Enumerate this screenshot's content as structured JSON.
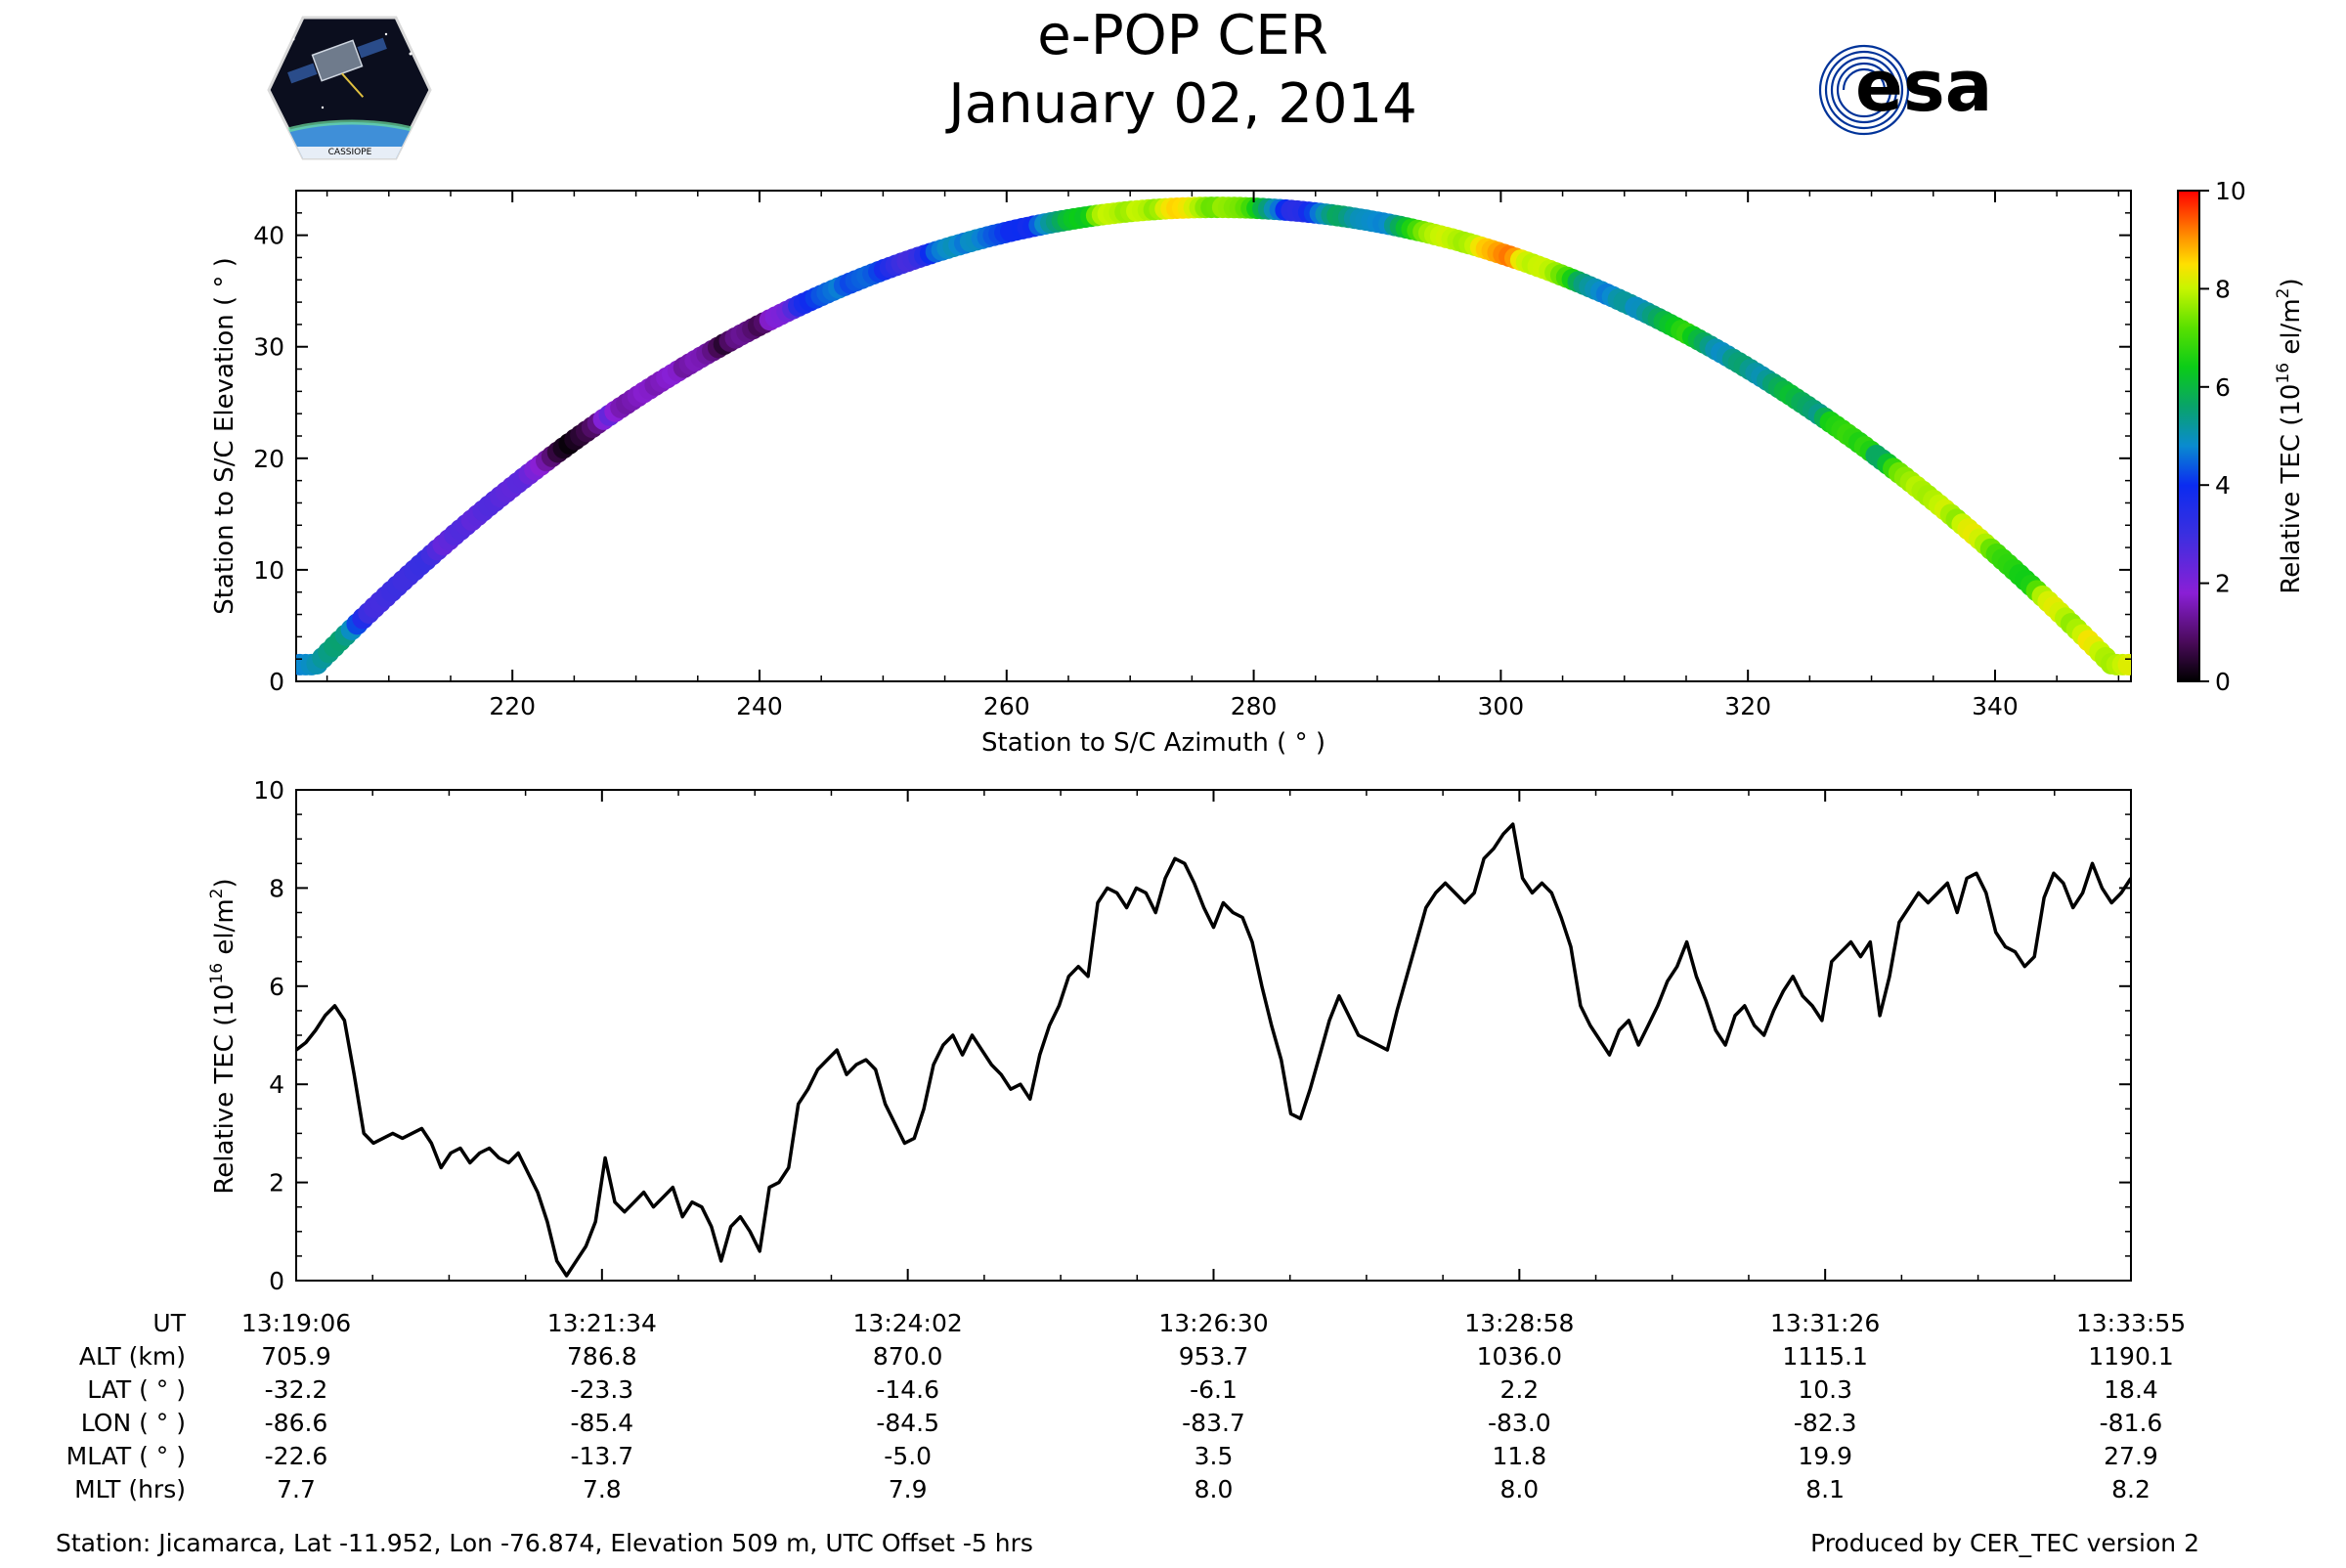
{
  "header": {
    "title": "e-POP CER",
    "date": "January 02, 2014",
    "logo_left_text": "CASSIOPE",
    "logo_right_text": "esa"
  },
  "colors": {
    "esa_blue": "#003399",
    "line": "#000000"
  },
  "chart_data": [
    {
      "type": "scatter",
      "xlabel": "Station to S/C Azimuth ( ° )",
      "ylabel": "Station to S/C Elevation ( ° )",
      "xlim": [
        202.5,
        351
      ],
      "ylim": [
        0,
        44
      ],
      "xticks": [
        220,
        240,
        260,
        280,
        300,
        320,
        340
      ],
      "yticks": [
        0,
        10,
        20,
        30,
        40
      ],
      "colormap": "nipy_spectral",
      "colorbar": {
        "label": "Relative TEC (10^16 el/m^2)",
        "ticks": [
          0,
          2,
          4,
          6,
          8,
          10
        ],
        "range": [
          0,
          10
        ]
      },
      "elevation_arc": {
        "peak_azimuth": 277,
        "peak_elevation": 42.5,
        "start_azimuth": 202.8,
        "end_azimuth": 350.8
      },
      "note_points": "Color per point = Relative TEC sampled along the pass (same series as chart 2)"
    },
    {
      "type": "line",
      "xlabel": "",
      "ylabel": "Relative TEC (10^16 el/m^2)",
      "ylim": [
        0,
        10
      ],
      "yticks": [
        0,
        2,
        4,
        6,
        8,
        10
      ],
      "x_time_start": "13:19:06",
      "x_time_end": "13:33:55",
      "series": [
        {
          "values": [
            4.7,
            4.85,
            5.1,
            5.4,
            5.6,
            5.3,
            4.2,
            3.0,
            2.8,
            2.9,
            3.0,
            2.9,
            3.0,
            3.1,
            2.8,
            2.3,
            2.6,
            2.7,
            2.4,
            2.6,
            2.7,
            2.5,
            2.4,
            2.6,
            2.2,
            1.8,
            1.2,
            0.4,
            0.1,
            0.4,
            0.7,
            1.2,
            2.5,
            1.6,
            1.4,
            1.6,
            1.8,
            1.5,
            1.7,
            1.9,
            1.3,
            1.6,
            1.5,
            1.1,
            0.4,
            1.1,
            1.3,
            1.0,
            0.6,
            1.9,
            2.0,
            2.3,
            3.6,
            3.9,
            4.3,
            4.5,
            4.7,
            4.2,
            4.4,
            4.5,
            4.3,
            3.6,
            3.2,
            2.8,
            2.9,
            3.5,
            4.4,
            4.8,
            5.0,
            4.6,
            5.0,
            4.7,
            4.4,
            4.2,
            3.9,
            4.0,
            3.7,
            4.6,
            5.2,
            5.6,
            6.2,
            6.4,
            6.2,
            7.7,
            8.0,
            7.9,
            7.6,
            8.0,
            7.9,
            7.5,
            8.2,
            8.6,
            8.5,
            8.1,
            7.6,
            7.2,
            7.7,
            7.5,
            7.4,
            6.9,
            6.0,
            5.2,
            4.5,
            3.4,
            3.3,
            3.9,
            4.6,
            5.3,
            5.8,
            5.4,
            5.0,
            4.9,
            4.8,
            4.7,
            5.5,
            6.2,
            6.9,
            7.6,
            7.9,
            8.1,
            7.9,
            7.7,
            7.9,
            8.6,
            8.8,
            9.1,
            9.3,
            8.2,
            7.9,
            8.1,
            7.9,
            7.4,
            6.8,
            5.6,
            5.2,
            4.9,
            4.6,
            5.1,
            5.3,
            4.8,
            5.2,
            5.6,
            6.1,
            6.4,
            6.9,
            6.2,
            5.7,
            5.1,
            4.8,
            5.4,
            5.6,
            5.2,
            5.0,
            5.5,
            5.9,
            6.2,
            5.8,
            5.6,
            5.3,
            6.5,
            6.7,
            6.9,
            6.6,
            6.9,
            5.4,
            6.2,
            7.3,
            7.6,
            7.9,
            7.7,
            7.9,
            8.1,
            7.5,
            8.2,
            8.3,
            7.9,
            7.1,
            6.8,
            6.7,
            6.4,
            6.6,
            7.8,
            8.3,
            8.1,
            7.6,
            7.9,
            8.5,
            8.0,
            7.7,
            7.9,
            8.2
          ]
        }
      ]
    }
  ],
  "info_table": {
    "row_labels": [
      "UT",
      "ALT (km)",
      "LAT ( ° )",
      "LON ( ° )",
      "MLAT ( ° )",
      "MLT (hrs)"
    ],
    "columns": [
      [
        "13:19:06",
        "705.9",
        "-32.2",
        "-86.6",
        "-22.6",
        "7.7"
      ],
      [
        "13:21:34",
        "786.8",
        "-23.3",
        "-85.4",
        "-13.7",
        "7.8"
      ],
      [
        "13:24:02",
        "870.0",
        "-14.6",
        "-84.5",
        "-5.0",
        "7.9"
      ],
      [
        "13:26:30",
        "953.7",
        "-6.1",
        "-83.7",
        "3.5",
        "8.0"
      ],
      [
        "13:28:58",
        "1036.0",
        "2.2",
        "-83.0",
        "11.8",
        "8.0"
      ],
      [
        "13:31:26",
        "1115.1",
        "10.3",
        "-82.3",
        "19.9",
        "8.1"
      ],
      [
        "13:33:55",
        "1190.1",
        "18.4",
        "-81.6",
        "27.9",
        "8.2"
      ]
    ]
  },
  "footer": {
    "station": "Station: Jicamarca, Lat -11.952, Lon -76.874, Elevation 509 m, UTC Offset -5 hrs",
    "produced_by": "Produced by CER_TEC version 2"
  }
}
